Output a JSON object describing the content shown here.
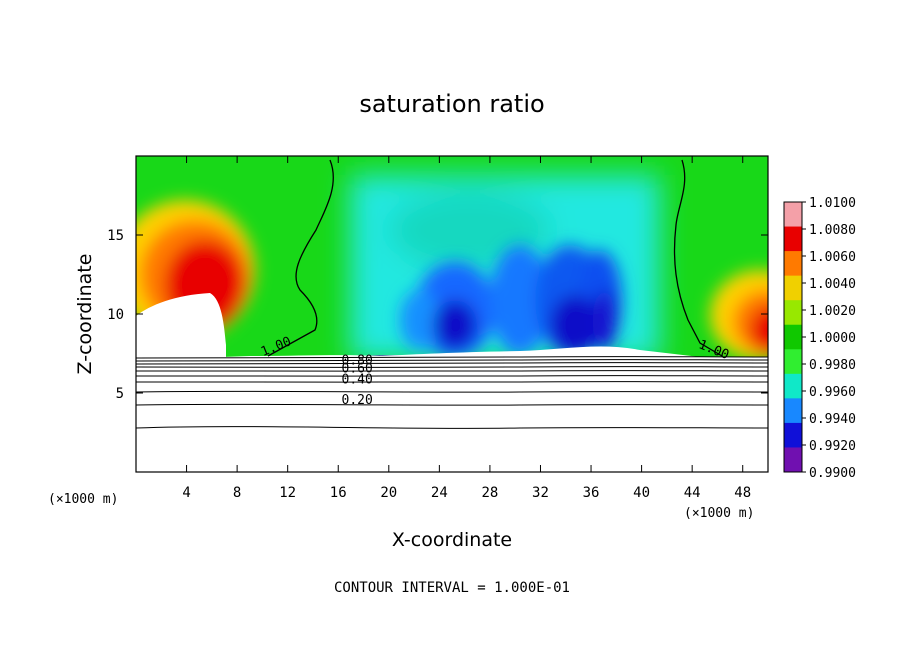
{
  "chart_data": {
    "type": "heatmap",
    "title": "saturation ratio",
    "xlabel": "X-coordinate",
    "ylabel": "Z-coordinate",
    "x_unit_label_left": "(×1000 m)",
    "x_unit_label_right": "(×1000 m)",
    "xlim": [
      0,
      50
    ],
    "ylim": [
      0,
      20
    ],
    "xticks": [
      4,
      8,
      12,
      16,
      20,
      24,
      28,
      32,
      36,
      40,
      44,
      48
    ],
    "yticks": [
      5,
      10,
      15
    ],
    "colorbar": {
      "levels": [
        "1.0100",
        "1.0080",
        "1.0060",
        "1.0040",
        "1.0020",
        "1.0000",
        "0.9980",
        "0.9960",
        "0.9940",
        "0.9920",
        "0.9900"
      ],
      "colors": [
        "#f4a0a8",
        "#e80000",
        "#ff7a00",
        "#f0d000",
        "#98e800",
        "#10c800",
        "#30ee30",
        "#10e8c8",
        "#1888ff",
        "#1010d8",
        "#7010b0"
      ]
    },
    "contour_labels": [
      {
        "text": "1.00",
        "x": 11.2,
        "z": 7.7
      },
      {
        "text": "1.00",
        "x": 45.6,
        "z": 7.5
      },
      {
        "text": "0.80",
        "x": 17.5,
        "z": 6.8
      },
      {
        "text": "0.60",
        "x": 17.5,
        "z": 6.3
      },
      {
        "text": "0.40",
        "x": 17.5,
        "z": 5.6
      },
      {
        "text": "0.20",
        "x": 17.5,
        "z": 4.3
      }
    ],
    "footer": "CONTOUR INTERVAL = 1.000E-01"
  }
}
